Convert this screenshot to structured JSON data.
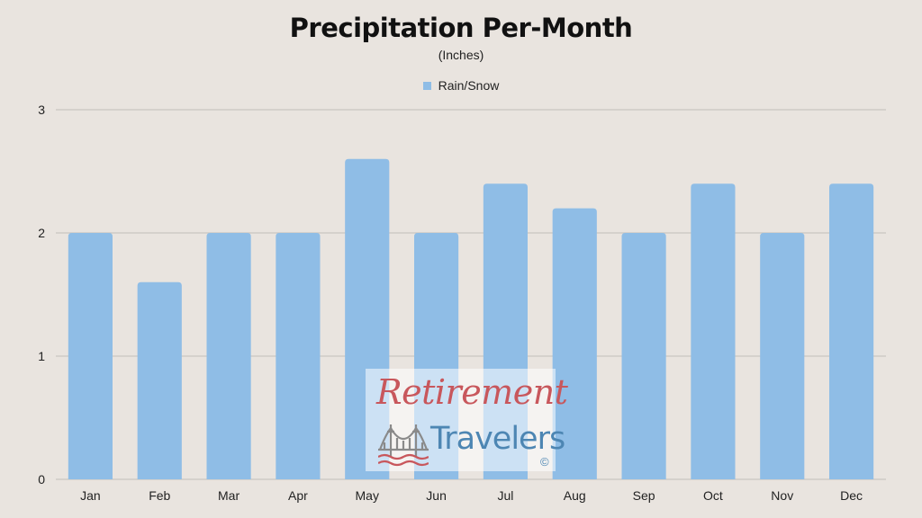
{
  "chart_data": {
    "type": "bar",
    "title": "Precipitation Per-Month",
    "subtitle": "(Inches)",
    "categories": [
      "Jan",
      "Feb",
      "Mar",
      "Apr",
      "May",
      "Jun",
      "Jul",
      "Aug",
      "Sep",
      "Oct",
      "Nov",
      "Dec"
    ],
    "series": [
      {
        "name": "Rain/Snow",
        "values": [
          2.0,
          1.6,
          2.0,
          2.0,
          2.6,
          2.0,
          2.4,
          2.2,
          2.0,
          2.4,
          2.0,
          2.4
        ],
        "color": "#8fbde6"
      }
    ],
    "ylim": [
      0,
      3
    ],
    "yticks": [
      "0",
      "1",
      "2",
      "3"
    ],
    "grid": true,
    "legend_position": "top"
  },
  "watermark": {
    "line1": "Retirement",
    "line2": "Travelers",
    "copyright": "©",
    "color_red": "#c8575c",
    "color_blue": "#4d86b3"
  }
}
